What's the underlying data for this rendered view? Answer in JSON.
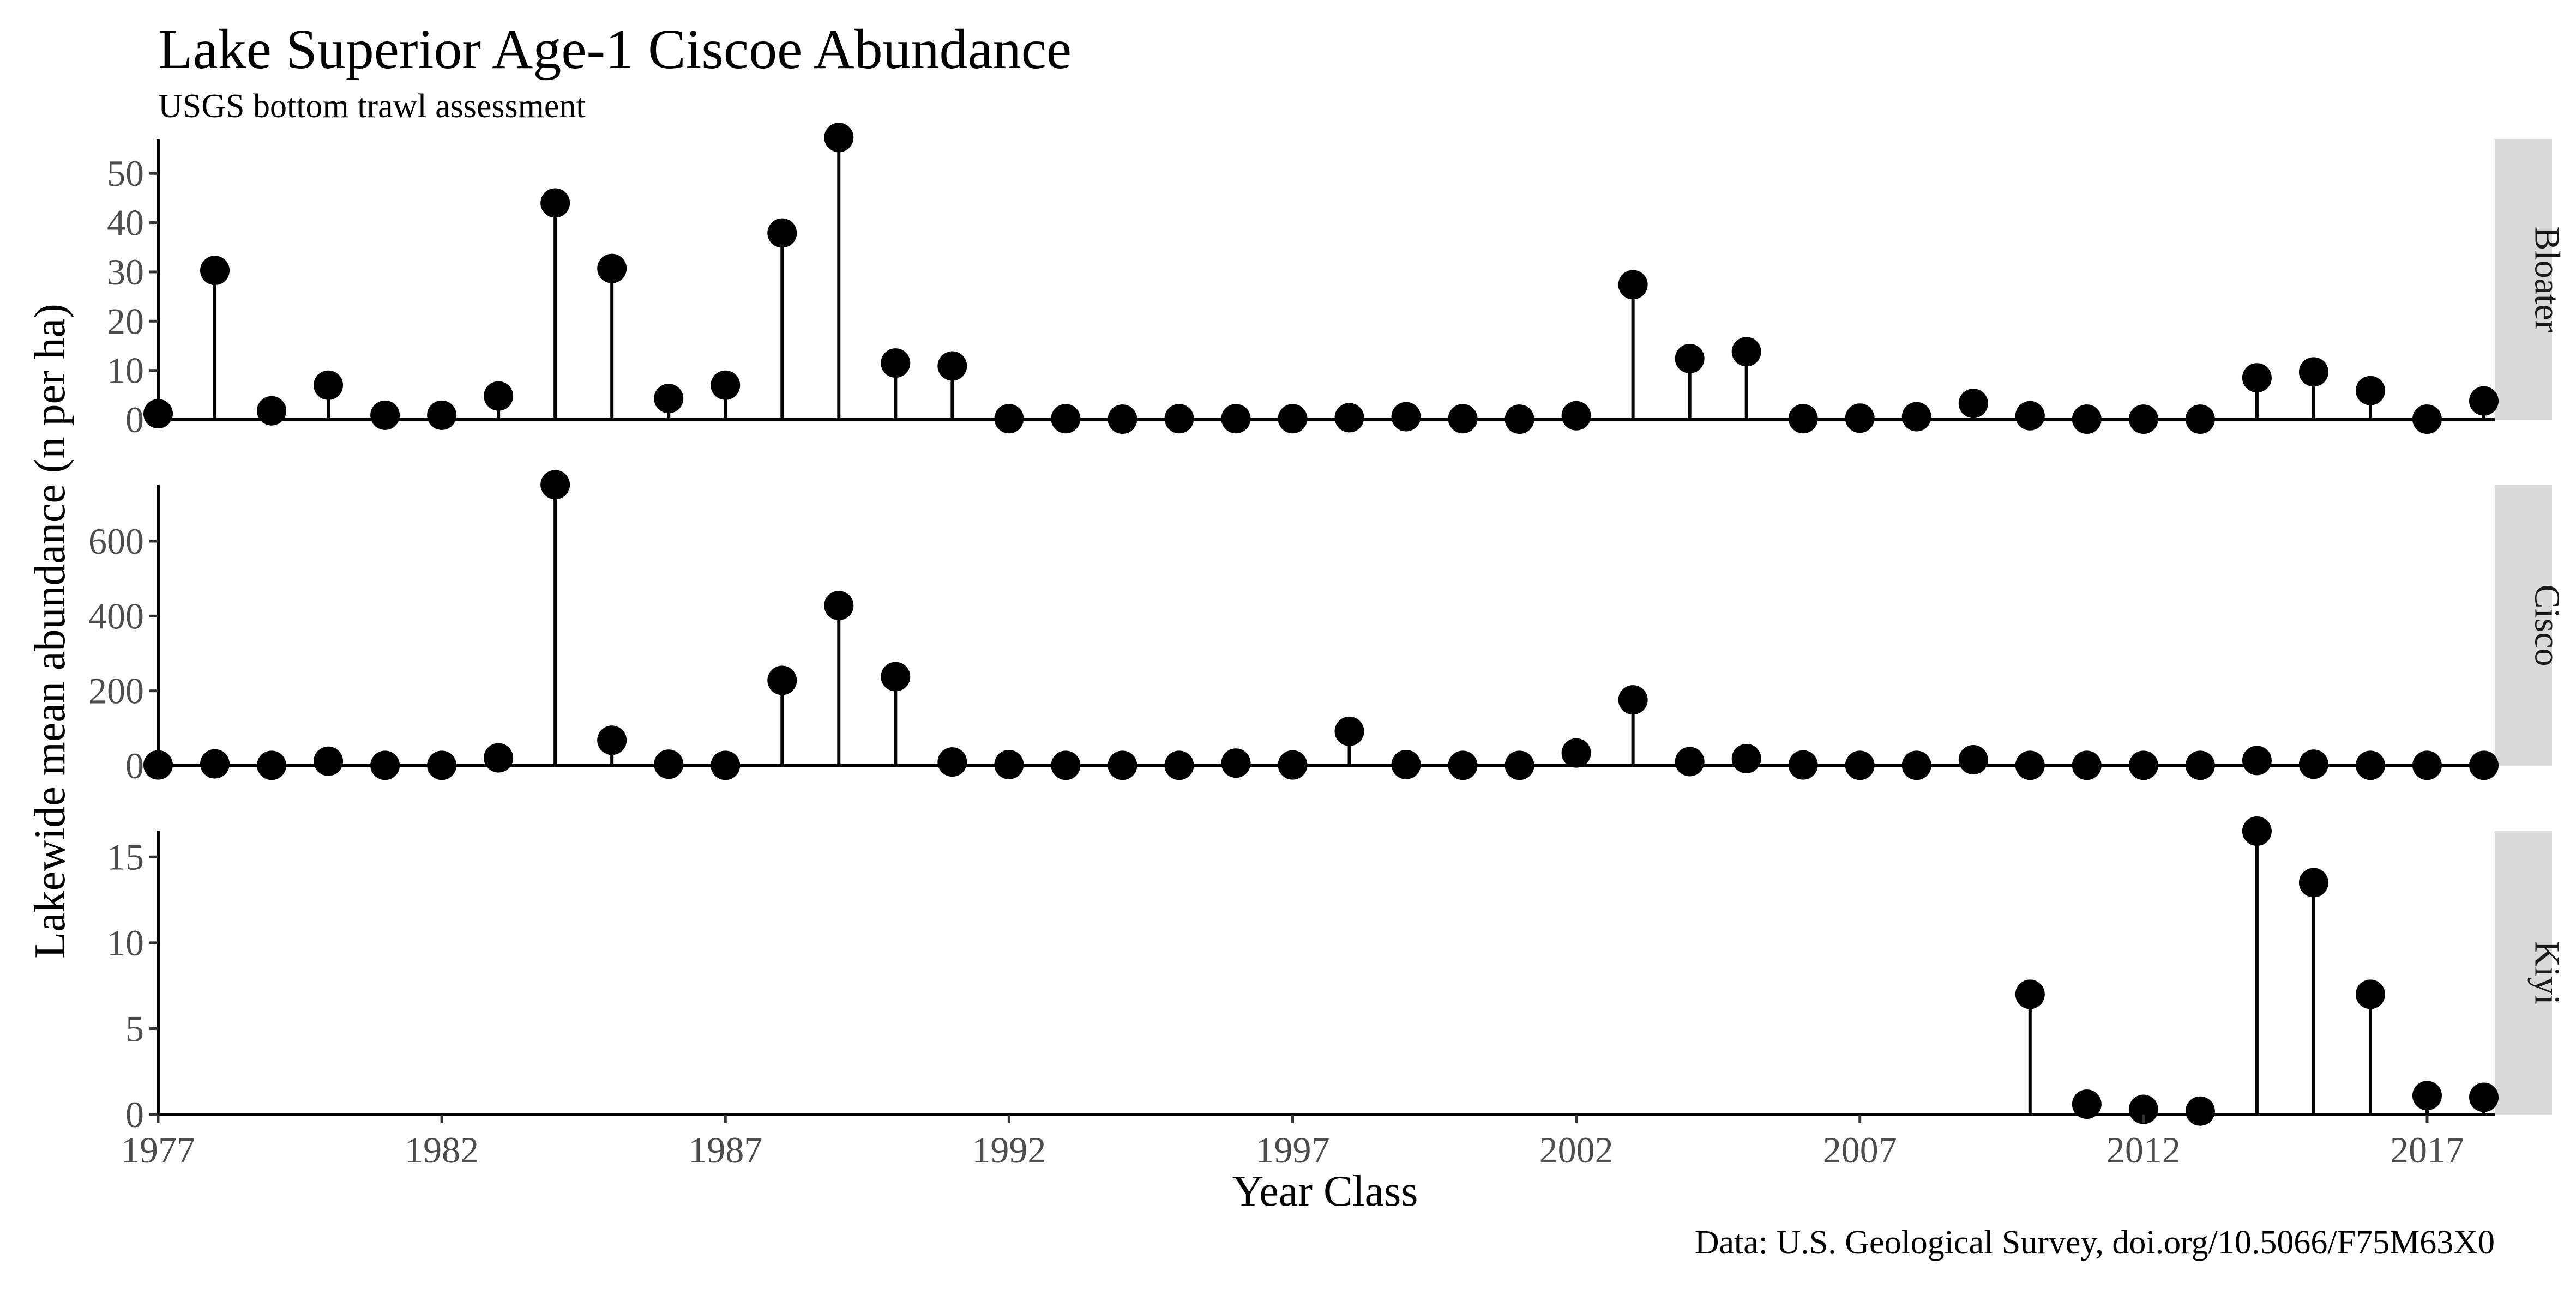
{
  "chart_data": {
    "type": "lollipop",
    "title": "Lake Superior Age-1 Ciscoe Abundance",
    "subtitle": "USGS bottom trawl assessment",
    "xlabel": "Year Class",
    "ylabel": "Lakewide mean abundance (n per ha)",
    "caption": "Data: U.S. Geological Survey, doi.org/10.5066/F75M63X0",
    "xlim": [
      1977,
      2018
    ],
    "x_ticks": [
      1977,
      1982,
      1987,
      1992,
      1997,
      2002,
      2007,
      2012,
      2017
    ],
    "x_tick_labels": [
      "1977",
      "1982",
      "1987",
      "1992",
      "1997",
      "2002",
      "2007",
      "2012",
      "2017"
    ],
    "grid": false,
    "colors": {
      "point": "#000000",
      "strip_background": "#d9d9d9"
    },
    "panels": [
      {
        "name": "Bloater",
        "ylim": [
          0,
          57
        ],
        "y_ticks": [
          0,
          10,
          20,
          30,
          40,
          50
        ],
        "y_tick_labels": [
          "0",
          "10",
          "20",
          "30",
          "40",
          "50"
        ],
        "x": [
          1977,
          1978,
          1979,
          1980,
          1981,
          1982,
          1983,
          1984,
          1985,
          1986,
          1987,
          1988,
          1989,
          1990,
          1991,
          1992,
          1993,
          1994,
          1995,
          1996,
          1997,
          1998,
          1999,
          2000,
          2001,
          2002,
          2003,
          2004,
          2005,
          2006,
          2007,
          2008,
          2009,
          2010,
          2011,
          2012,
          2013,
          2014,
          2015,
          2016,
          2017,
          2018
        ],
        "y": [
          1.2,
          30.3,
          1.8,
          7.0,
          0.9,
          0.9,
          4.8,
          44.0,
          30.7,
          4.3,
          7.0,
          37.9,
          57.3,
          11.5,
          10.9,
          0.2,
          0.2,
          0.1,
          0.2,
          0.2,
          0.2,
          0.4,
          0.6,
          0.2,
          0.1,
          0.8,
          27.4,
          12.4,
          13.8,
          0.2,
          0.3,
          0.6,
          3.3,
          0.8,
          0.1,
          0.1,
          0.1,
          8.5,
          9.7,
          5.9,
          0.1,
          3.8
        ]
      },
      {
        "name": "Cisco",
        "ylim": [
          0,
          750
        ],
        "y_ticks": [
          0,
          200,
          400,
          600
        ],
        "y_tick_labels": [
          "0",
          "200",
          "400",
          "600"
        ],
        "x": [
          1977,
          1978,
          1979,
          1980,
          1981,
          1982,
          1983,
          1984,
          1985,
          1986,
          1987,
          1988,
          1989,
          1990,
          1991,
          1992,
          1993,
          1994,
          1995,
          1996,
          1997,
          1998,
          1999,
          2000,
          2001,
          2002,
          2003,
          2004,
          2005,
          2006,
          2007,
          2008,
          2009,
          2010,
          2011,
          2012,
          2013,
          2014,
          2015,
          2016,
          2017,
          2018
        ],
        "y": [
          2,
          5,
          1,
          12,
          1,
          1,
          21,
          751,
          68,
          4,
          1,
          228,
          428,
          238,
          10,
          3,
          1,
          1,
          1,
          7,
          2,
          92,
          3,
          1,
          1,
          34,
          176,
          11,
          19,
          2,
          1,
          1,
          16,
          1,
          1,
          1,
          1,
          14,
          4,
          1,
          1,
          1
        ]
      },
      {
        "name": "Kiyi",
        "ylim": [
          0,
          16.5
        ],
        "y_ticks": [
          0,
          5,
          10,
          15
        ],
        "y_tick_labels": [
          "0",
          "5",
          "10",
          "15"
        ],
        "x": [
          2010,
          2011,
          2012,
          2013,
          2014,
          2015,
          2016,
          2017,
          2018
        ],
        "y": [
          7.0,
          0.6,
          0.3,
          0.2,
          16.5,
          13.5,
          7.0,
          1.1,
          1.0
        ]
      }
    ]
  }
}
